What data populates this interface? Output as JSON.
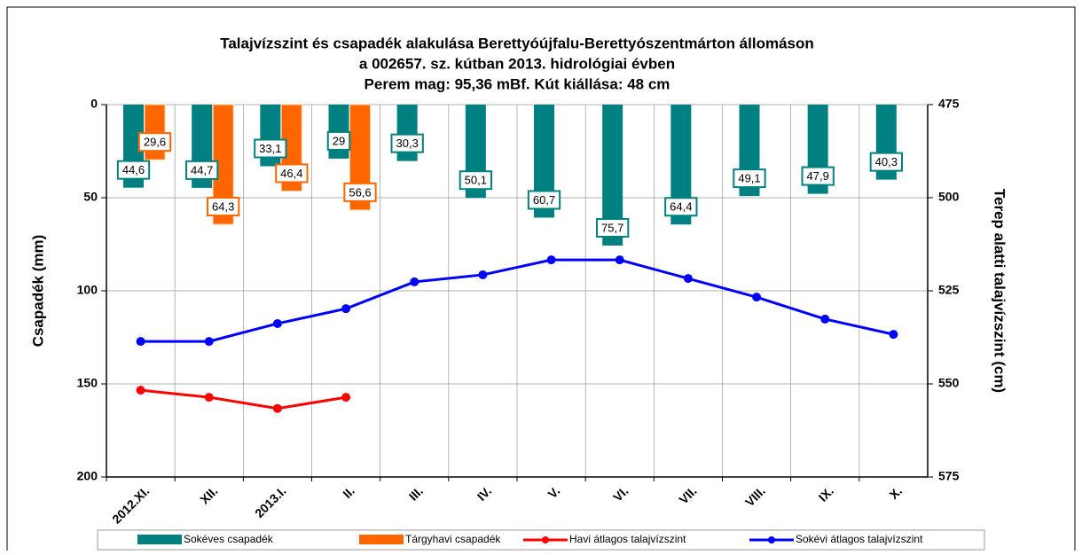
{
  "chart_data": {
    "type": "bar_line",
    "title": [
      "Talajvízszint és csapadék alakulása Berettyóújfalu-Berettyószentmárton állomáson",
      "a 002657. sz. kútban 2013. hidrológiai évben",
      "Perem mag: 95,36 mBf. Kút kiállása: 48 cm"
    ],
    "y_label": "Csapadék (mm)",
    "y2_label": "Terep alatti talajvízszint (cm)",
    "categories": [
      "2012.XI.",
      "XII.",
      "2013.I.",
      "II.",
      "III.",
      "IV.",
      "V.",
      "VI.",
      "VII.",
      "VIII.",
      "IX.",
      "X."
    ],
    "ylim": [
      0,
      200
    ],
    "yticks": [
      0,
      50,
      100,
      150,
      200
    ],
    "y_inverted": true,
    "y2lim": [
      475,
      575
    ],
    "y2ticks": [
      475,
      500,
      525,
      550,
      575
    ],
    "y2_inverted": true,
    "grid": true,
    "legend": "bottom",
    "series": [
      {
        "name": "Sokéves csapadék",
        "type": "bar",
        "color": "#008080",
        "values": [
          44.6,
          44.7,
          33.1,
          29,
          30.3,
          50.1,
          60.7,
          75.7,
          64.4,
          49.1,
          47.9,
          40.3
        ],
        "value_labels": [
          "44,6",
          "44,7",
          "33,1",
          "29",
          "30,3",
          "50,1",
          "60,7",
          "75,7",
          "64,4",
          "49,1",
          "47,9",
          "40,3"
        ]
      },
      {
        "name": "Tárgyhavi csapadék",
        "type": "bar",
        "color": "#ff6600",
        "values": [
          29.6,
          64.3,
          46.4,
          56.6,
          null,
          null,
          null,
          null,
          null,
          null,
          null,
          null
        ],
        "value_labels": [
          "29,6",
          "64,3",
          "46,4",
          "56,6",
          null,
          null,
          null,
          null,
          null,
          null,
          null,
          null
        ]
      },
      {
        "name": "Havi átlagos talajvízszint",
        "type": "line",
        "axis": "y2",
        "color": "#ff0000",
        "values": [
          551.7,
          553.6,
          556.6,
          553.6,
          null,
          null,
          null,
          null,
          null,
          null,
          null,
          null
        ]
      },
      {
        "name": "Sokévi átlagos talajvízszint",
        "type": "line",
        "axis": "y2",
        "color": "#0000ff",
        "values": [
          538.6,
          538.6,
          533.8,
          529.8,
          522.6,
          520.7,
          516.7,
          516.7,
          521.7,
          526.7,
          532.6,
          536.7
        ]
      }
    ]
  }
}
